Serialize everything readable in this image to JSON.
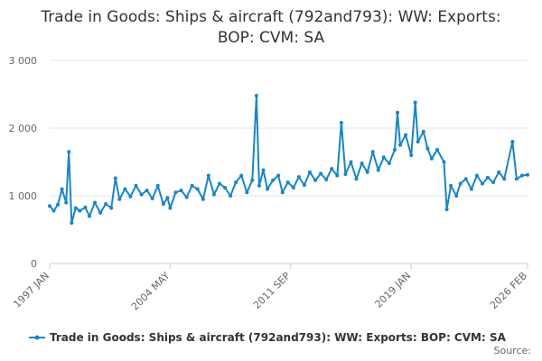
{
  "chart_data": {
    "type": "line",
    "title_lines": [
      "Trade in Goods: Ships & aircraft (792and793): WW: Exports:",
      "BOP: CVM: SA"
    ],
    "xlabel": "",
    "ylabel": "",
    "ylim": [
      0,
      3000
    ],
    "y_ticks": [
      0,
      1000,
      2000,
      3000
    ],
    "y_tick_labels": [
      "0",
      "1 000",
      "2 000",
      "3 000"
    ],
    "x_ticks": [
      "1997-01",
      "2004-05",
      "2011-09",
      "2019-01",
      "2026-02"
    ],
    "x_tick_labels": [
      "1997 JAN",
      "2004 MAY",
      "2011 SEP",
      "2019 JAN",
      "2026 FEB"
    ],
    "grid": "horizontal",
    "legend_position": "bottom",
    "credits": "Source:",
    "color": "#1a85c6",
    "series": [
      {
        "name": "Trade in Goods: Ships & aircraft (792and793): WW: Exports: BOP: CVM: SA",
        "points": [
          [
            "1997-01",
            850
          ],
          [
            "1997-04",
            780
          ],
          [
            "1997-07",
            870
          ],
          [
            "1997-10",
            1100
          ],
          [
            "1998-01",
            900
          ],
          [
            "1998-03",
            1650
          ],
          [
            "1998-05",
            600
          ],
          [
            "1998-08",
            820
          ],
          [
            "1998-11",
            780
          ],
          [
            "1999-03",
            830
          ],
          [
            "1999-06",
            700
          ],
          [
            "1999-10",
            900
          ],
          [
            "2000-02",
            750
          ],
          [
            "2000-06",
            880
          ],
          [
            "2000-10",
            820
          ],
          [
            "2001-01",
            1260
          ],
          [
            "2001-04",
            950
          ],
          [
            "2001-08",
            1100
          ],
          [
            "2001-12",
            990
          ],
          [
            "2002-04",
            1150
          ],
          [
            "2002-08",
            1020
          ],
          [
            "2002-12",
            1080
          ],
          [
            "2003-04",
            960
          ],
          [
            "2003-08",
            1150
          ],
          [
            "2003-12",
            880
          ],
          [
            "2004-03",
            970
          ],
          [
            "2004-05",
            820
          ],
          [
            "2004-09",
            1050
          ],
          [
            "2005-01",
            1080
          ],
          [
            "2005-05",
            980
          ],
          [
            "2005-09",
            1150
          ],
          [
            "2006-01",
            1100
          ],
          [
            "2006-05",
            950
          ],
          [
            "2006-09",
            1300
          ],
          [
            "2007-01",
            1020
          ],
          [
            "2007-05",
            1180
          ],
          [
            "2007-09",
            1120
          ],
          [
            "2008-01",
            1000
          ],
          [
            "2008-05",
            1200
          ],
          [
            "2008-09",
            1300
          ],
          [
            "2009-01",
            1050
          ],
          [
            "2009-05",
            1230
          ],
          [
            "2009-08",
            2480
          ],
          [
            "2009-10",
            1150
          ],
          [
            "2010-01",
            1380
          ],
          [
            "2010-04",
            1100
          ],
          [
            "2010-08",
            1230
          ],
          [
            "2010-12",
            1300
          ],
          [
            "2011-03",
            1050
          ],
          [
            "2011-07",
            1200
          ],
          [
            "2011-11",
            1120
          ],
          [
            "2012-03",
            1280
          ],
          [
            "2012-07",
            1160
          ],
          [
            "2012-11",
            1350
          ],
          [
            "2013-03",
            1230
          ],
          [
            "2013-07",
            1330
          ],
          [
            "2013-11",
            1240
          ],
          [
            "2014-03",
            1400
          ],
          [
            "2014-07",
            1300
          ],
          [
            "2014-10",
            2080
          ],
          [
            "2015-01",
            1320
          ],
          [
            "2015-05",
            1500
          ],
          [
            "2015-09",
            1250
          ],
          [
            "2016-01",
            1480
          ],
          [
            "2016-05",
            1350
          ],
          [
            "2016-09",
            1650
          ],
          [
            "2017-01",
            1380
          ],
          [
            "2017-05",
            1570
          ],
          [
            "2017-09",
            1480
          ],
          [
            "2018-01",
            1680
          ],
          [
            "2018-03",
            2230
          ],
          [
            "2018-05",
            1750
          ],
          [
            "2018-09",
            1900
          ],
          [
            "2019-01",
            1600
          ],
          [
            "2019-04",
            2380
          ],
          [
            "2019-06",
            1800
          ],
          [
            "2019-10",
            1950
          ],
          [
            "2020-01",
            1700
          ],
          [
            "2020-04",
            1550
          ],
          [
            "2020-08",
            1680
          ],
          [
            "2021-01",
            1500
          ],
          [
            "2021-03",
            800
          ],
          [
            "2021-06",
            1150
          ],
          [
            "2021-10",
            1000
          ],
          [
            "2022-01",
            1180
          ],
          [
            "2022-05",
            1250
          ],
          [
            "2022-09",
            1100
          ],
          [
            "2023-01",
            1300
          ],
          [
            "2023-05",
            1180
          ],
          [
            "2023-09",
            1270
          ],
          [
            "2024-01",
            1200
          ],
          [
            "2024-05",
            1350
          ],
          [
            "2024-09",
            1250
          ],
          [
            "2025-03",
            1800
          ],
          [
            "2025-06",
            1250
          ],
          [
            "2025-10",
            1300
          ],
          [
            "2026-02",
            1310
          ]
        ]
      }
    ]
  }
}
